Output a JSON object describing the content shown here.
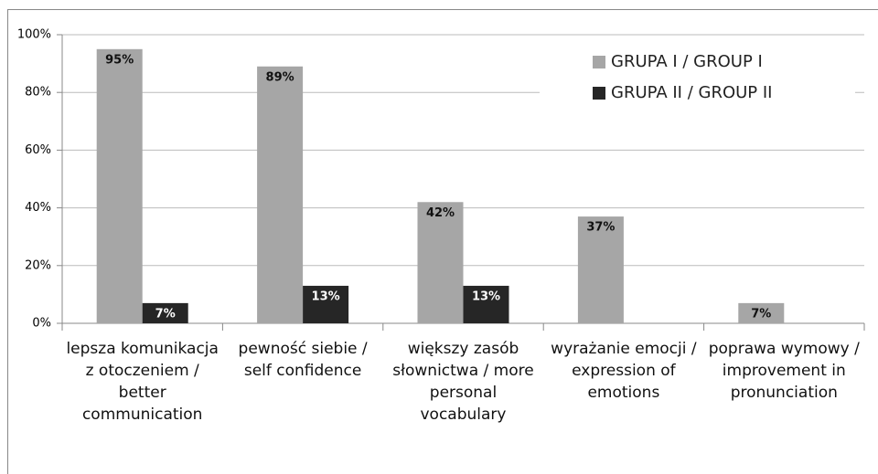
{
  "chart_data": {
    "type": "bar",
    "categories": [
      "lepsza komunikacja z otoczeniem / better communication",
      "pewność siebie / self confidence",
      "większy zasób słownictwa / more personal vocabulary",
      "wyrażanie emocji / expression of emotions",
      "poprawa wymowy / improvement in pronunciation"
    ],
    "series": [
      {
        "name": "GRUPA I / GROUP I",
        "color": "#a6a6a6",
        "values": [
          95,
          89,
          42,
          37,
          7
        ],
        "value_labels": [
          "95%",
          "89%",
          "42%",
          "37%",
          "7%"
        ]
      },
      {
        "name": "GRUPA II / GROUP II",
        "color": "#262626",
        "values": [
          7,
          13,
          13,
          null,
          null
        ],
        "value_labels": [
          "7%",
          "13%",
          "13%",
          null,
          null
        ]
      }
    ],
    "ylim": [
      0,
      100
    ],
    "yticks": [
      {
        "value": 0,
        "label": "0%"
      },
      {
        "value": 20,
        "label": "20%"
      },
      {
        "value": 40,
        "label": "40%"
      },
      {
        "value": 60,
        "label": "60%"
      },
      {
        "value": 80,
        "label": "80%"
      },
      {
        "value": 100,
        "label": "100%"
      }
    ],
    "grid": true,
    "legend": "top-right"
  }
}
